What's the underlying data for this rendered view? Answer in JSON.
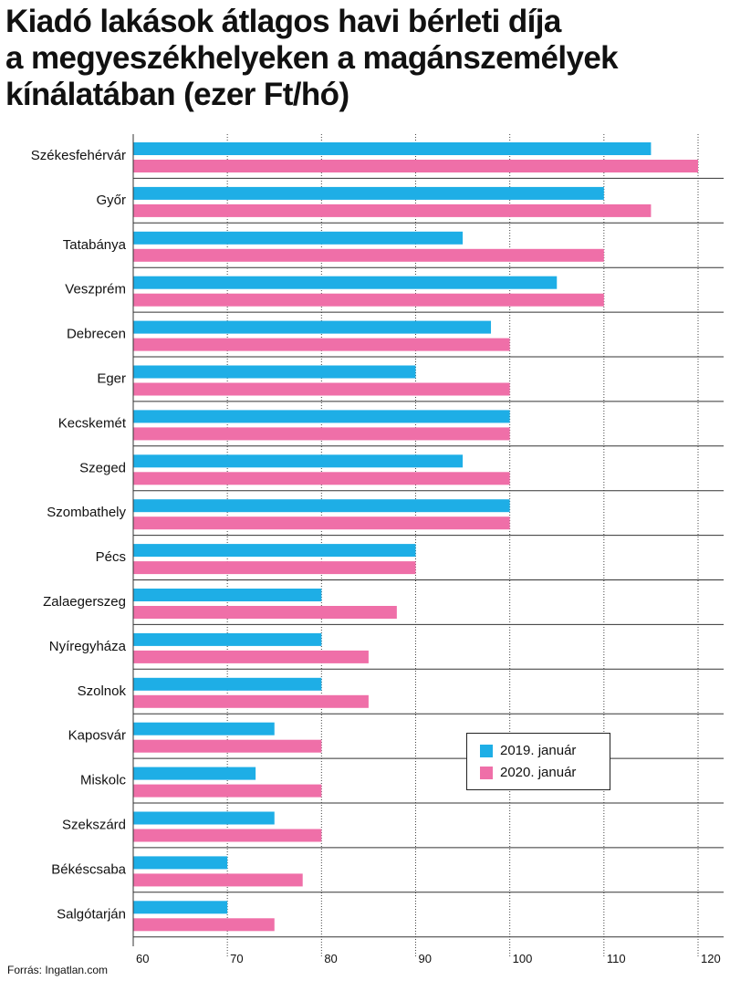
{
  "title_lines": [
    "Kiadó lakások átlagos havi bérleti díja",
    "a megyeszékhelyeken a magánszemélyek",
    "kínálatában (ezer Ft/hó)"
  ],
  "source": "Forrás: Ingatlan.com",
  "colors": {
    "series_2019": "#1eaee6",
    "series_2020": "#ef6fa8"
  },
  "chart_data": {
    "type": "bar",
    "orientation": "horizontal",
    "title": "Kiadó lakások átlagos havi bérleti díja a megyeszékhelyeken a magánszemélyek kínálatában (ezer Ft/hó)",
    "xlabel": "",
    "ylabel": "",
    "xlim": [
      60,
      120
    ],
    "xticks": [
      60,
      70,
      80,
      90,
      100,
      110,
      120
    ],
    "grid": true,
    "legend_position": "bottom-right",
    "categories": [
      "Székesfehérvár",
      "Győr",
      "Tatabánya",
      "Veszprém",
      "Debrecen",
      "Eger",
      "Kecskemét",
      "Szeged",
      "Szombathely",
      "Pécs",
      "Zalaegerszeg",
      "Nyíregyháza",
      "Szolnok",
      "Kaposvár",
      "Miskolc",
      "Szekszárd",
      "Békéscsaba",
      "Salgótarján"
    ],
    "series": [
      {
        "name": "2019. január",
        "values": [
          115,
          110,
          95,
          105,
          98,
          90,
          100,
          95,
          100,
          90,
          80,
          80,
          80,
          75,
          73,
          75,
          70,
          70
        ]
      },
      {
        "name": "2020. január",
        "values": [
          120,
          115,
          110,
          110,
          100,
          100,
          100,
          100,
          100,
          90,
          88,
          85,
          85,
          80,
          80,
          80,
          78,
          75
        ]
      }
    ]
  }
}
